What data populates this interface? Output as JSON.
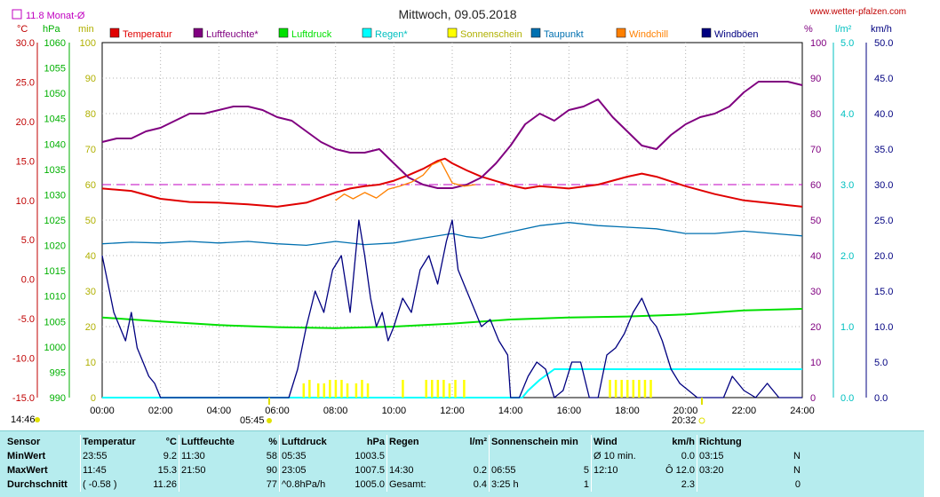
{
  "header": {
    "date_title": "Mittwoch, 09.05.2018",
    "website": "www.wetter-pfalzen.com",
    "month_avg_label": "11.8 Monat-Ø"
  },
  "chart_data": {
    "type": "line",
    "title": "Mittwoch, 09.05.2018",
    "x": {
      "ticks": [
        "00:00",
        "02:00",
        "04:00",
        "06:00",
        "08:00",
        "10:00",
        "12:00",
        "14:00",
        "16:00",
        "18:00",
        "20:00",
        "22:00",
        "24:00"
      ],
      "range_hours": [
        0,
        24
      ]
    },
    "axes": {
      "temp_c": {
        "unit": "°C",
        "range": [
          -15,
          30
        ],
        "ticks": [
          "30.0",
          "25.0",
          "20.0",
          "15.0",
          "10.0",
          "5.0",
          "0.0",
          "-5.0",
          "-10.0",
          "-15.0"
        ]
      },
      "pressure_hpa": {
        "unit": "hPa",
        "range": [
          990,
          1060
        ],
        "ticks": [
          "1060",
          "1055",
          "1050",
          "1045",
          "1040",
          "1035",
          "1030",
          "1025",
          "1020",
          "1015",
          "1010",
          "1005",
          "1000",
          "995",
          "990"
        ]
      },
      "sunshine_min": {
        "unit": "min",
        "range": [
          0,
          100
        ],
        "ticks": [
          "100",
          "90",
          "80",
          "70",
          "60",
          "50",
          "40",
          "30",
          "20",
          "10",
          "0"
        ]
      },
      "humidity_pct": {
        "unit": "%",
        "range": [
          0,
          100
        ],
        "ticks": [
          "100",
          "90",
          "80",
          "70",
          "60",
          "50",
          "40",
          "30",
          "20",
          "10",
          "0"
        ]
      },
      "rain_lm2": {
        "unit": "l/m²",
        "range": [
          0,
          5
        ],
        "ticks": [
          "5.0",
          "4.0",
          "3.0",
          "2.0",
          "1.0",
          "0.0"
        ]
      },
      "wind_kmh": {
        "unit": "km/h",
        "range": [
          0,
          50
        ],
        "ticks": [
          "50.0",
          "45.0",
          "40.0",
          "35.0",
          "30.0",
          "25.0",
          "20.0",
          "15.0",
          "10.0",
          "5.0",
          "0.0"
        ]
      }
    },
    "month_avg_temp": 11.8,
    "sunrise": "05:45",
    "sunset": "20:32",
    "day_start": "14:46",
    "legend": [
      {
        "name": "Temperatur",
        "color": "#e00000"
      },
      {
        "name": "Luftfeuchte*",
        "color": "#800080"
      },
      {
        "name": "Luftdruck",
        "color": "#00e000"
      },
      {
        "name": "Regen*",
        "color": "#00ffff"
      },
      {
        "name": "Sonnenschein",
        "color": "#ffff00"
      },
      {
        "name": "Taupunkt",
        "color": "#0070b0"
      },
      {
        "name": "Windchill",
        "color": "#ff8000"
      },
      {
        "name": "Windböen",
        "color": "#000080"
      }
    ],
    "series": [
      {
        "name": "Temperatur",
        "axis": "temp_c",
        "color": "#e00000",
        "x": [
          0,
          1,
          2,
          3,
          4,
          5,
          6,
          7,
          8,
          8.5,
          9,
          9.5,
          10,
          10.5,
          11,
          11.5,
          11.75,
          12,
          12.5,
          13,
          14,
          14.5,
          15,
          16,
          17,
          18,
          18.5,
          19,
          20,
          21,
          22,
          23,
          24
        ],
        "y": [
          11.5,
          11.2,
          10.2,
          9.8,
          9.7,
          9.5,
          9.2,
          9.7,
          11.0,
          11.5,
          11.8,
          12.0,
          12.5,
          13.2,
          14.0,
          15.0,
          15.3,
          14.7,
          13.8,
          13.0,
          11.9,
          11.5,
          11.8,
          11.5,
          12.0,
          13.0,
          13.4,
          13.0,
          11.8,
          10.8,
          10.0,
          9.6,
          9.2
        ]
      },
      {
        "name": "Luftfeuchte*",
        "axis": "humidity_pct",
        "color": "#800080",
        "x": [
          0,
          0.5,
          1,
          1.5,
          2,
          2.5,
          3,
          3.5,
          4,
          4.5,
          5,
          5.5,
          6,
          6.5,
          7,
          7.5,
          8,
          8.5,
          9,
          9.5,
          10,
          10.5,
          11,
          11.5,
          12,
          12.5,
          13,
          13.5,
          14,
          14.5,
          15,
          15.5,
          16,
          16.5,
          17,
          17.5,
          18,
          18.5,
          19,
          19.5,
          20,
          20.5,
          21,
          21.5,
          22,
          22.5,
          23,
          23.5,
          24
        ],
        "y": [
          72,
          73,
          73,
          75,
          76,
          78,
          80,
          80,
          81,
          82,
          82,
          81,
          79,
          78,
          75,
          72,
          70,
          69,
          69,
          70,
          66,
          62,
          60,
          59,
          59,
          60,
          62,
          66,
          71,
          77,
          80,
          78,
          81,
          82,
          84,
          79,
          75,
          71,
          70,
          74,
          77,
          79,
          80,
          82,
          86,
          89,
          89,
          89,
          88
        ]
      },
      {
        "name": "Luftdruck",
        "axis": "pressure_hpa",
        "color": "#00e000",
        "x": [
          0,
          2,
          4,
          6,
          8,
          10,
          12,
          14,
          16,
          18,
          20,
          22,
          24
        ],
        "y": [
          1005.8,
          1005.0,
          1004.3,
          1003.9,
          1003.7,
          1004.0,
          1004.6,
          1005.4,
          1005.8,
          1006.0,
          1006.4,
          1007.2,
          1007.5
        ]
      },
      {
        "name": "Regen*",
        "axis": "rain_lm2",
        "color": "#00ffff",
        "x": [
          0,
          14.4,
          14.6,
          15,
          15.5,
          16,
          17,
          18,
          20,
          22,
          24
        ],
        "y": [
          0,
          0,
          0.1,
          0.25,
          0.4,
          0.4,
          0.4,
          0.4,
          0.4,
          0.4,
          0.4
        ]
      },
      {
        "name": "Taupunkt",
        "axis": "temp_c",
        "color": "#0070b0",
        "x": [
          0,
          1,
          2,
          3,
          4,
          5,
          6,
          7,
          8,
          9,
          10,
          11,
          12,
          12.5,
          13,
          14,
          15,
          16,
          17,
          18,
          19,
          20,
          21,
          22,
          23,
          24
        ],
        "y": [
          4.5,
          4.7,
          4.6,
          4.8,
          4.6,
          4.8,
          4.5,
          4.3,
          4.8,
          4.4,
          4.6,
          5.2,
          5.8,
          5.4,
          5.2,
          6.0,
          6.8,
          7.2,
          6.8,
          6.6,
          6.4,
          5.8,
          5.8,
          6.1,
          5.8,
          5.5
        ]
      },
      {
        "name": "Windchill",
        "axis": "temp_c",
        "color": "#ff8000",
        "x": [
          8,
          8.3,
          8.6,
          9,
          9.4,
          9.8,
          10.2,
          10.6,
          11,
          11.3,
          11.6,
          12,
          12.4,
          12.8
        ],
        "y": [
          10.0,
          10.8,
          10.2,
          11.0,
          10.3,
          11.4,
          11.8,
          12.3,
          13.2,
          14.5,
          15.0,
          12.2,
          11.8,
          12.0
        ]
      },
      {
        "name": "Windböen",
        "axis": "wind_kmh",
        "color": "#000080",
        "x": [
          0,
          0.2,
          0.4,
          0.6,
          0.8,
          1,
          1.2,
          1.4,
          1.6,
          1.8,
          2,
          2.5,
          3,
          3.5,
          4,
          4.5,
          5,
          5.5,
          6,
          6.4,
          6.7,
          7,
          7.3,
          7.6,
          7.9,
          8.2,
          8.5,
          8.8,
          9,
          9.2,
          9.4,
          9.6,
          9.8,
          10,
          10.3,
          10.6,
          10.9,
          11.2,
          11.5,
          11.8,
          12,
          12.2,
          12.4,
          12.6,
          12.8,
          13,
          13.3,
          13.6,
          13.9,
          14,
          14.3,
          14.6,
          14.9,
          15.2,
          15.5,
          15.8,
          16.1,
          16.4,
          16.7,
          17,
          17.3,
          17.6,
          17.9,
          18.2,
          18.5,
          18.8,
          19,
          19.2,
          19.5,
          19.8,
          20.1,
          20.4,
          20.7,
          21,
          21.3,
          21.6,
          22,
          22.4,
          22.8,
          23.2,
          23.6,
          24
        ],
        "y": [
          20,
          16,
          12,
          10,
          8,
          12,
          7,
          5,
          3,
          2,
          0,
          0,
          0,
          0,
          0,
          0,
          0,
          0,
          0,
          0,
          4,
          10,
          15,
          12,
          18,
          20,
          12,
          25,
          20,
          14,
          10,
          12,
          8,
          10,
          14,
          12,
          18,
          20,
          16,
          22,
          25,
          18,
          16,
          14,
          12,
          10,
          11,
          8,
          6,
          0,
          0,
          3,
          5,
          4,
          0,
          1,
          5,
          5,
          0,
          0,
          6,
          7,
          9,
          12,
          14,
          11,
          10,
          8,
          4,
          2,
          1,
          0,
          0,
          0,
          0,
          3,
          1,
          0,
          2,
          0,
          0,
          0
        ]
      },
      {
        "name": "Sonnenschein",
        "axis": "sunshine_min",
        "color": "#ffff00",
        "type": "bar",
        "x": [
          6.9,
          7.1,
          7.4,
          7.6,
          7.8,
          8.0,
          8.2,
          8.4,
          8.7,
          8.9,
          9.1,
          10.3,
          11.1,
          11.3,
          11.5,
          11.7,
          11.9,
          12.1,
          12.4,
          17.4,
          17.6,
          17.8,
          18.0,
          18.2,
          18.4,
          18.6,
          18.8
        ],
        "y": [
          4,
          5,
          4,
          4,
          5,
          5,
          5,
          4,
          4,
          5,
          4,
          5,
          5,
          5,
          5,
          5,
          4,
          5,
          5,
          5,
          5,
          5,
          5,
          5,
          5,
          5,
          5
        ]
      }
    ],
    "reference_lines": [
      {
        "axis": "humidity_pct",
        "value": 60,
        "color": "#c000c0",
        "style": "dashed"
      }
    ]
  },
  "stats": {
    "columns": [
      {
        "title": "Sensor",
        "unit": ""
      },
      {
        "title": "Temperatur",
        "unit": "°C"
      },
      {
        "title": "Luftfeuchte",
        "unit": "%"
      },
      {
        "title": "Luftdruck",
        "unit": "hPa"
      },
      {
        "title": "Regen",
        "unit": "l/m²"
      },
      {
        "title": "Sonnenschein min",
        "unit": ""
      },
      {
        "title": "Wind",
        "unit": "km/h"
      },
      {
        "title": "Richtung",
        "unit": ""
      }
    ],
    "rows": [
      {
        "label": "MinWert",
        "temp_time": "23:55",
        "temp_val": "9.2",
        "hum_time": "11:30",
        "hum_val": "58",
        "press_time": "05:35",
        "press_val": "1003.5",
        "rain_time": "",
        "rain_val": "",
        "sun_time": "",
        "sun_val": "",
        "wind_label": "Ø 10 min.",
        "wind_val": "0.0",
        "dir_time": "03:15",
        "dir_val": "N"
      },
      {
        "label": "MaxWert",
        "temp_time": "11:45",
        "temp_val": "15.3",
        "hum_time": "21:50",
        "hum_val": "90",
        "press_time": "23:05",
        "press_val": "1007.5",
        "rain_time": "14:30",
        "rain_val": "0.2",
        "sun_time": "06:55",
        "sun_val": "5",
        "wind_label": "12:10",
        "wind_val": "Ô 12.0",
        "dir_time": "03:20",
        "dir_val": "N"
      },
      {
        "label": "Durchschnitt",
        "temp_time": "( -0.58 )",
        "temp_val": "11.26",
        "hum_time": "",
        "hum_val": "77",
        "press_time": "^0.8hPa/h",
        "press_val": "1005.0",
        "rain_time": "Gesamt:",
        "rain_val": "0.4",
        "sun_time": "3:25 h",
        "sun_val": "1",
        "wind_label": "",
        "wind_val": "2.3",
        "dir_time": "",
        "dir_val": "0"
      }
    ]
  }
}
